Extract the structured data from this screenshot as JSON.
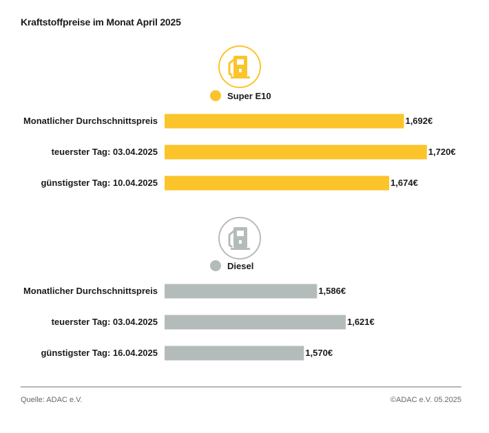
{
  "title": "Kraftstoffpreise im Monat April 2025",
  "source": "Quelle: ADAC e.V.",
  "copyright": "©ADAC e.V. 05.2025",
  "chart_data": [
    {
      "type": "bar",
      "series_name": "Super E10",
      "color": "#fcc42b",
      "icon": "fuel-pump-icon",
      "categories": [
        "Monatlicher Durchschnittspreis",
        "teuerster Tag: 03.04.2025",
        "günstigster Tag: 10.04.2025"
      ],
      "values": [
        1.692,
        1.72,
        1.674
      ],
      "value_labels": [
        "1,692€",
        "1,720€",
        "1,674€"
      ]
    },
    {
      "type": "bar",
      "series_name": "Diesel",
      "color": "#b4bcbb",
      "icon": "fuel-pump-icon",
      "categories": [
        "Monatlicher Durchschnittspreis",
        "teuerster Tag: 03.04.2025",
        "günstigster Tag: 16.04.2025"
      ],
      "values": [
        1.586,
        1.621,
        1.57
      ],
      "value_labels": [
        "1,586€",
        "1,621€",
        "1,570€"
      ]
    }
  ]
}
